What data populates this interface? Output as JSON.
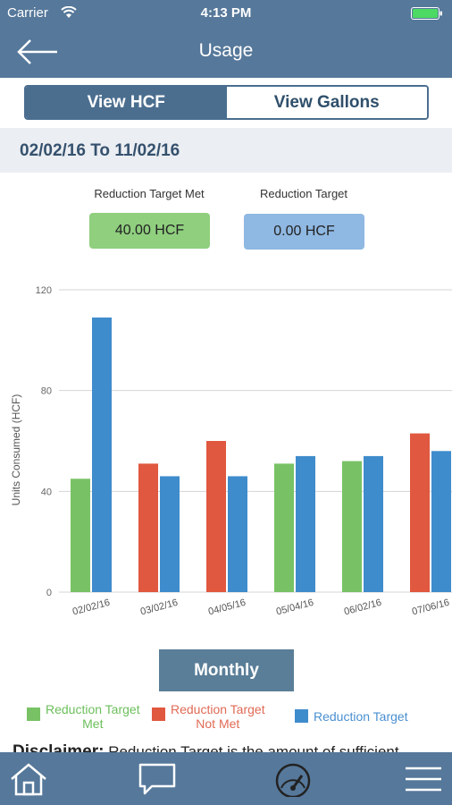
{
  "status_bar": {
    "carrier": "Carrier",
    "time": "4:13 PM"
  },
  "nav": {
    "title": "Usage",
    "back_icon": "arrow-left-icon"
  },
  "segmented": {
    "hcf_label": "View HCF",
    "gallons_label": "View Gallons",
    "selected": "hcf"
  },
  "date_range": "02/02/16 To 11/02/16",
  "summary": {
    "met_label": "Reduction Target Met",
    "met_value": "40.00 HCF",
    "target_label": "Reduction Target",
    "target_value": "0.00 HCF"
  },
  "chart_data": {
    "type": "bar",
    "ylabel": "Units Consumed (HCF)",
    "ylim": [
      0,
      120
    ],
    "yticks": [
      "0",
      "40",
      "80",
      "120"
    ],
    "categories": [
      "02/02/16",
      "03/02/16",
      "04/05/16",
      "05/04/16",
      "06/02/16",
      "07/06/16"
    ],
    "series": [
      {
        "name": "Reduction Target Met",
        "color": "#78c265",
        "values": [
          45,
          null,
          null,
          51,
          52,
          null
        ]
      },
      {
        "name": "Reduction Target Not Met",
        "color": "#e0583f",
        "values": [
          null,
          51,
          60,
          null,
          null,
          63
        ]
      },
      {
        "name": "Reduction Target",
        "color": "#3f8ccc",
        "values": [
          109,
          46,
          46,
          54,
          54,
          56
        ]
      }
    ],
    "grid": true
  },
  "monthly_button": "Monthly",
  "legend": [
    {
      "line1": "Reduction Target",
      "line2": "Met",
      "color": "#78c265",
      "text_color": "#6bbf5a"
    },
    {
      "line1": "Reduction Target",
      "line2": "Not Met",
      "color": "#e0583f",
      "text_color": "#e06a55"
    },
    {
      "line1": "Reduction Target",
      "line2": "",
      "color": "#3f8ccc",
      "text_color": "#4a8fd0"
    }
  ],
  "disclaimer": {
    "heading": "Disclaimer:",
    "text": "Reduction Target is the amount of sufficient"
  },
  "tab_bar": {
    "icons": [
      "home-icon",
      "chat-icon",
      "gauge-icon",
      "menu-icon"
    ]
  }
}
